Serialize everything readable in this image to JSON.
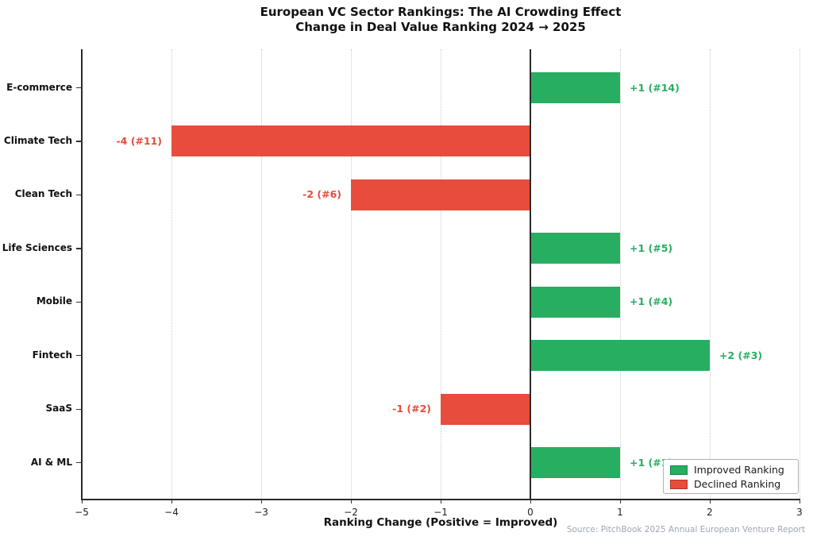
{
  "title": {
    "line1": "European VC Sector Rankings: The AI Crowding Effect",
    "line2": "Change in Deal Value Ranking 2024 → 2025"
  },
  "chart_data": {
    "type": "bar",
    "orientation": "horizontal",
    "categories": [
      "E-commerce",
      "Climate Tech",
      "Clean Tech",
      "Life Sciences",
      "Mobile",
      "Fintech",
      "SaaS",
      "AI & ML"
    ],
    "values": [
      1,
      -4,
      -2,
      1,
      1,
      2,
      -1,
      1
    ],
    "bar_labels": [
      "+1 (#14)",
      "-4 (#11)",
      "-2 (#6)",
      "+1 (#5)",
      "+1 (#4)",
      "+2 (#3)",
      "-1 (#2)",
      "+1 (#1)"
    ],
    "xlabel": "Ranking Change (Positive = Improved)",
    "xlim": [
      -5,
      3
    ],
    "xticks": [
      {
        "v": -5,
        "label": "−5"
      },
      {
        "v": -4,
        "label": "−4"
      },
      {
        "v": -3,
        "label": "−3"
      },
      {
        "v": -2,
        "label": "−2"
      },
      {
        "v": -1,
        "label": "−1"
      },
      {
        "v": 0,
        "label": "0"
      },
      {
        "v": 1,
        "label": "1"
      },
      {
        "v": 2,
        "label": "2"
      },
      {
        "v": 3,
        "label": "3"
      }
    ],
    "colors": {
      "positive": "#27ae60",
      "negative": "#e74c3c"
    },
    "grid": "vertical-dotted",
    "legend_position": "lower-right",
    "legend": [
      {
        "label": "Improved Ranking",
        "color": "#27ae60"
      },
      {
        "label": "Declined Ranking",
        "color": "#e74c3c"
      }
    ]
  },
  "source": "Source: PitchBook 2025 Annual European Venture Report"
}
